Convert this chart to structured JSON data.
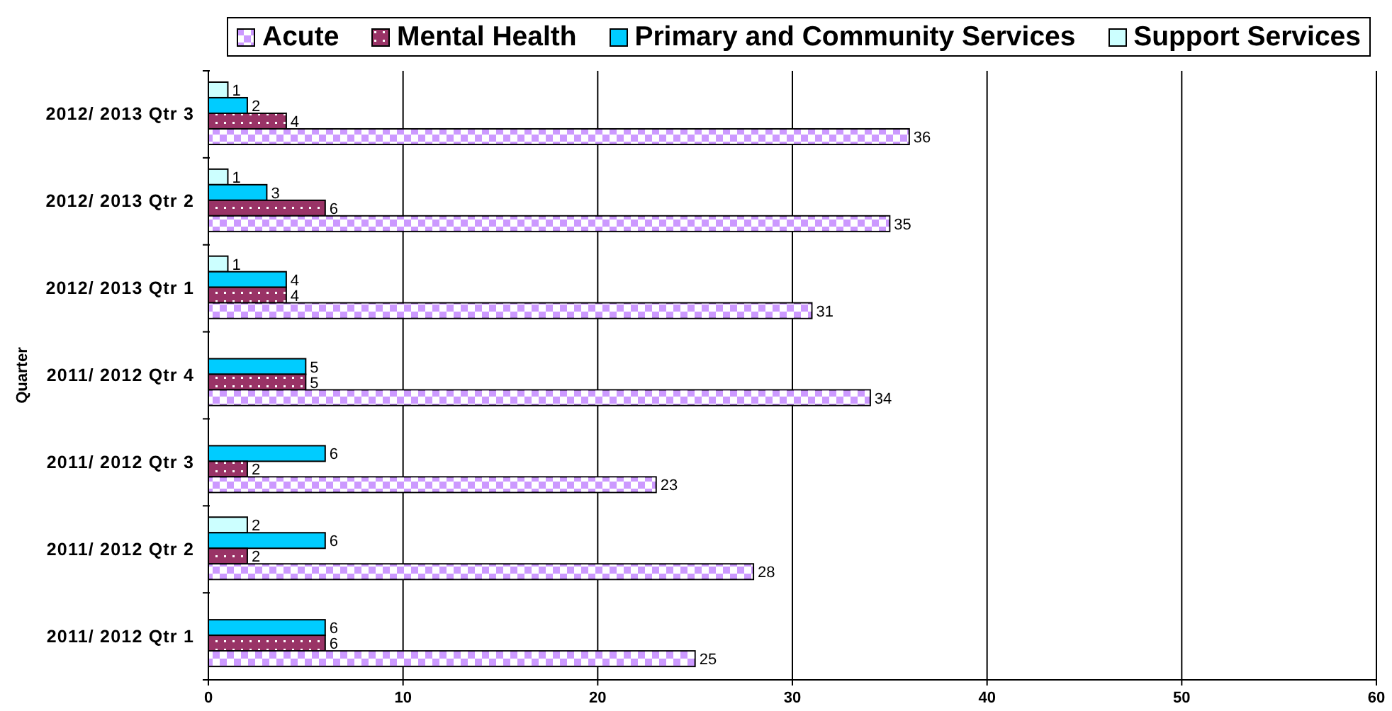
{
  "chart_data": {
    "type": "bar",
    "orientation": "horizontal",
    "ylabel": "Quarter",
    "categories": [
      "2012/ 2013 Qtr 3",
      "2012/ 2013 Qtr 2",
      "2012/ 2013 Qtr 1",
      "2011/ 2012 Qtr 4",
      "2011/ 2012 Qtr 3",
      "2011/ 2012 Qtr 2",
      "2011/ 2012 Qtr 1"
    ],
    "series": [
      {
        "name": "Acute",
        "color": "#cc99ff",
        "values": [
          36,
          35,
          31,
          34,
          23,
          28,
          25
        ]
      },
      {
        "name": "Mental Health",
        "color": "#993366",
        "values": [
          4,
          6,
          4,
          5,
          2,
          2,
          6
        ]
      },
      {
        "name": "Primary and Community Services",
        "color": "#00ccff",
        "values": [
          2,
          3,
          4,
          5,
          6,
          6,
          6
        ]
      },
      {
        "name": "Support Services",
        "color": "#ccffff",
        "values": [
          1,
          1,
          1,
          null,
          null,
          2,
          null
        ]
      }
    ],
    "xlim": [
      0,
      60
    ],
    "xticks": [
      0,
      10,
      20,
      30,
      40,
      50,
      60
    ],
    "grid": "x",
    "legend": "top",
    "data_labels": true
  }
}
